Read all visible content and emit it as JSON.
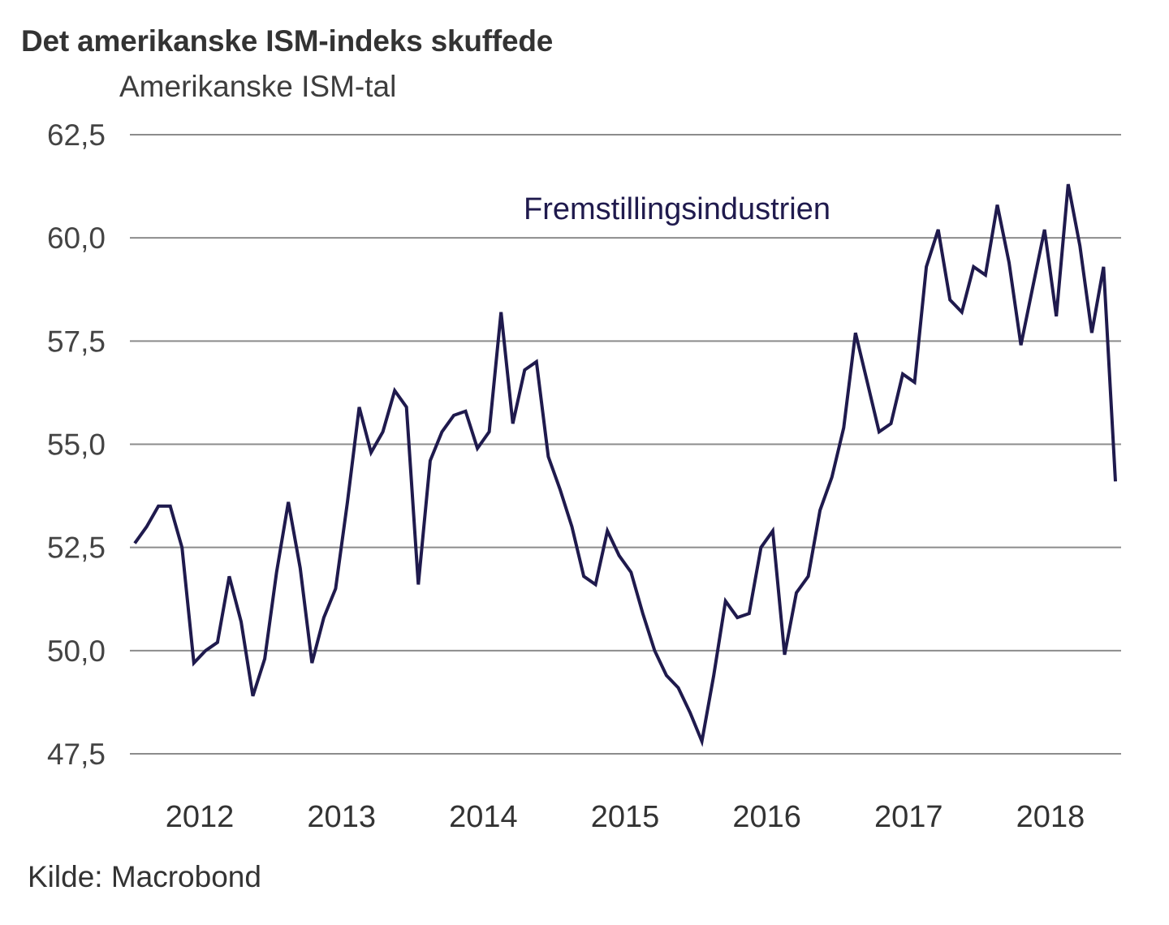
{
  "header": {
    "title": "Det amerikanske ISM-indeks skuffede",
    "subtitle": "Amerikanske ISM-tal"
  },
  "footer": {
    "source": "Kilde: Macrobond"
  },
  "colors": {
    "series": "#1f1a4d",
    "grid": "#8c8c8c"
  },
  "chart_data": {
    "type": "line",
    "title": "Det amerikanske ISM-indeks skuffede",
    "subtitle": "Amerikanske ISM-tal",
    "xlabel": "",
    "ylabel": "",
    "ylim": [
      47.5,
      62.5
    ],
    "yticks": [
      "62,5",
      "60,0",
      "57,5",
      "55,0",
      "52,5",
      "50,0",
      "47,5"
    ],
    "ytick_values": [
      62.5,
      60.0,
      57.5,
      55.0,
      52.5,
      50.0,
      47.5
    ],
    "xticks": [
      "2012",
      "2013",
      "2014",
      "2015",
      "2016",
      "2017",
      "2018"
    ],
    "x_start": "2012-01",
    "x_end": "2018-12",
    "frequency": "monthly",
    "grid": true,
    "legend": "inline-label",
    "series": [
      {
        "name": "Fremstillingsindustrien",
        "values": [
          52.6,
          53.0,
          53.5,
          53.5,
          52.5,
          49.7,
          50.0,
          50.2,
          51.8,
          50.7,
          48.9,
          49.8,
          51.9,
          53.6,
          52.0,
          49.7,
          50.8,
          51.5,
          53.6,
          55.9,
          54.8,
          55.3,
          56.3,
          55.9,
          51.6,
          54.6,
          55.3,
          55.7,
          55.8,
          54.9,
          55.3,
          58.2,
          55.5,
          56.8,
          57.0,
          54.7,
          53.9,
          53.0,
          51.8,
          51.6,
          52.9,
          52.3,
          51.9,
          50.9,
          50.0,
          49.4,
          49.1,
          48.5,
          47.8,
          49.4,
          51.2,
          50.8,
          50.9,
          52.5,
          52.9,
          49.9,
          51.4,
          51.8,
          53.4,
          54.2,
          55.4,
          57.7,
          56.5,
          55.3,
          55.5,
          56.7,
          56.5,
          59.3,
          60.2,
          58.5,
          58.2,
          59.3,
          59.1,
          60.8,
          59.4,
          57.4,
          58.8,
          60.2,
          58.1,
          61.3,
          59.8,
          57.7,
          59.3,
          54.1
        ]
      }
    ]
  }
}
